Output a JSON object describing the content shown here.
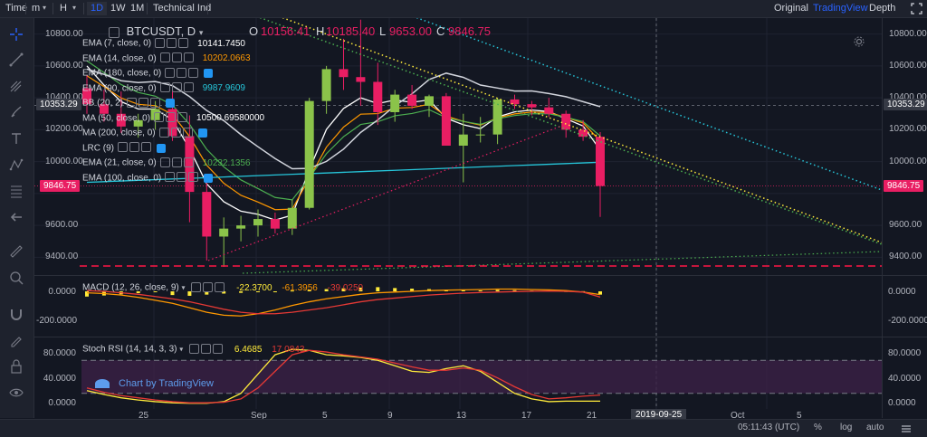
{
  "toolbar": {
    "time_label": "Time",
    "minute_label": "m",
    "hour_label": "H",
    "tf_1d": "1D",
    "tf_1w": "1W",
    "tf_1m": "1M",
    "indicators_label": "Technical Ind",
    "view_original": "Original",
    "view_tradingview": "TradingView",
    "view_depth": "Depth"
  },
  "symbol": {
    "name": "BTCUSDT, D",
    "open_label": "O",
    "open": "10156.41",
    "high_label": "H",
    "high": "10185.40",
    "low_label": "L",
    "low": "9653.00",
    "close_label": "C",
    "close": "9846.75"
  },
  "indicators": [
    {
      "name": "EMA (7, close, 0)",
      "value": "10141.7450",
      "color": "#ffffff"
    },
    {
      "name": "EMA (14, close, 0)",
      "value": "10202.0663",
      "color": "#ff9800"
    },
    {
      "name": "EMA (180, close, 0)",
      "value": "",
      "color": "#2196f3"
    },
    {
      "name": "EMA (90, close, 0)",
      "value": "9987.9609",
      "color": "#26c6da"
    },
    {
      "name": "BB (20, 2)",
      "value": "",
      "color": "#2196f3"
    },
    {
      "name": "MA (50, close, 0)",
      "value": "10500.69580000",
      "color": "#ffffff"
    },
    {
      "name": "MA (200, close, 0)",
      "value": "",
      "color": "#2196f3"
    },
    {
      "name": "LRC (9)",
      "value": "",
      "color": "#2196f3"
    },
    {
      "name": "EMA (21, close, 0)",
      "value": "10232.1356",
      "color": "#4caf50"
    },
    {
      "name": "EMA (100, close, 0)",
      "value": "",
      "color": "#2196f3"
    }
  ],
  "price_axis": {
    "ticks": [
      "10800.00",
      "10600.00",
      "10400.00",
      "10200.00",
      "10000.00",
      "9600.00",
      "9400.00"
    ],
    "current_price": "9846.75",
    "crosshair_price": "10353.29",
    "left_ticks": [
      "10800.00",
      "10600.00",
      "10400.00",
      "10200.00",
      "10000.00",
      "9600.00",
      "9400.00"
    ]
  },
  "macd": {
    "name": "MACD (12, 26, close, 9)",
    "v1": "-22.3700",
    "v2": "-61.3956",
    "v3": "-39.0250",
    "ticks": [
      "0.0000",
      "-200.0000"
    ]
  },
  "stoch": {
    "name": "Stoch RSI (14, 14, 3, 3)",
    "v1": "6.4685",
    "v2": "17.0843",
    "ticks": [
      "80.0000",
      "40.0000",
      "0.0000"
    ]
  },
  "watermark": "Chart by TradingView",
  "x_axis": {
    "ticks": [
      "25",
      "Sep",
      "5",
      "9",
      "13",
      "17",
      "21",
      "Oct",
      "5"
    ],
    "crosshair_date": "2019-09-25"
  },
  "footer": {
    "time": "05:11:43 (UTC)",
    "percent": "%",
    "log": "log",
    "auto": "auto"
  },
  "colors": {
    "up": "#8bc34a",
    "down": "#e91e63",
    "background": "#131722"
  },
  "chart_data": {
    "type": "candlestick",
    "symbol": "BTCUSDT",
    "interval": "1D",
    "candles": [
      {
        "o": 10460,
        "h": 10540,
        "l": 10300,
        "c": 10360
      },
      {
        "o": 10360,
        "h": 10450,
        "l": 10250,
        "c": 10300
      },
      {
        "o": 10300,
        "h": 10440,
        "l": 10180,
        "c": 10220
      },
      {
        "o": 10220,
        "h": 10300,
        "l": 10150,
        "c": 10260
      },
      {
        "o": 10260,
        "h": 10380,
        "l": 10200,
        "c": 10330
      },
      {
        "o": 10330,
        "h": 10480,
        "l": 10130,
        "c": 10160
      },
      {
        "o": 10160,
        "h": 10290,
        "l": 9620,
        "c": 9810
      },
      {
        "o": 9810,
        "h": 9880,
        "l": 9380,
        "c": 9530
      },
      {
        "o": 9530,
        "h": 9650,
        "l": 9340,
        "c": 9580
      },
      {
        "o": 9580,
        "h": 9660,
        "l": 9500,
        "c": 9600
      },
      {
        "o": 9600,
        "h": 9700,
        "l": 9530,
        "c": 9640
      },
      {
        "o": 9640,
        "h": 9680,
        "l": 9550,
        "c": 9580
      },
      {
        "o": 9580,
        "h": 9760,
        "l": 9540,
        "c": 9710
      },
      {
        "o": 9710,
        "h": 10400,
        "l": 9700,
        "c": 10380
      },
      {
        "o": 10380,
        "h": 10600,
        "l": 10300,
        "c": 10580
      },
      {
        "o": 10580,
        "h": 10770,
        "l": 10450,
        "c": 10530
      },
      {
        "o": 10530,
        "h": 10890,
        "l": 10350,
        "c": 10500
      },
      {
        "o": 10500,
        "h": 10620,
        "l": 10230,
        "c": 10310
      },
      {
        "o": 10310,
        "h": 10450,
        "l": 10250,
        "c": 10420
      },
      {
        "o": 10420,
        "h": 10480,
        "l": 10330,
        "c": 10350
      },
      {
        "o": 10350,
        "h": 10420,
        "l": 10280,
        "c": 10410
      },
      {
        "o": 10410,
        "h": 10430,
        "l": 10100,
        "c": 10100
      },
      {
        "o": 10100,
        "h": 10300,
        "l": 9870,
        "c": 10170
      },
      {
        "o": 10170,
        "h": 10280,
        "l": 10120,
        "c": 10170
      },
      {
        "o": 10170,
        "h": 10400,
        "l": 10110,
        "c": 10390
      },
      {
        "o": 10390,
        "h": 10420,
        "l": 10330,
        "c": 10360
      },
      {
        "o": 10360,
        "h": 10380,
        "l": 10290,
        "c": 10340
      },
      {
        "o": 10340,
        "h": 10400,
        "l": 10280,
        "c": 10300
      },
      {
        "o": 10300,
        "h": 10320,
        "l": 10150,
        "c": 10200
      },
      {
        "o": 10200,
        "h": 10260,
        "l": 10130,
        "c": 10156
      },
      {
        "o": 10156,
        "h": 10185,
        "l": 9653,
        "c": 9847
      }
    ],
    "ylim": [
      9300,
      10900
    ]
  }
}
